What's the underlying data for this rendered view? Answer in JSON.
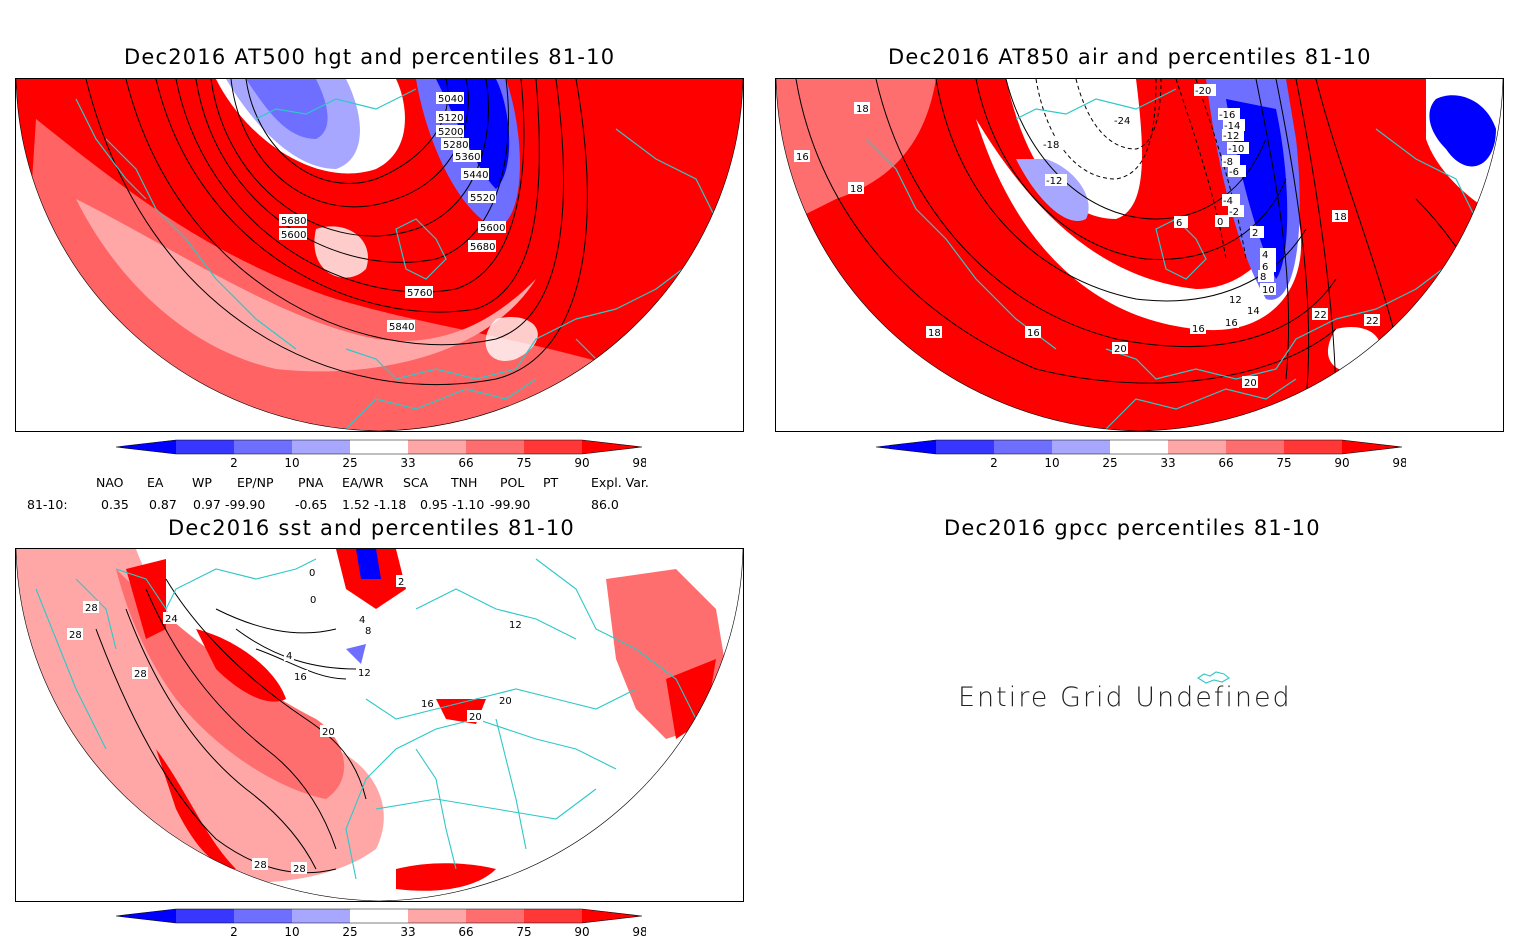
{
  "panels": {
    "hgt500": {
      "title": "Dec2016 AT500 hgt and percentiles 81-10",
      "contour_labels": [
        "5040",
        "5120",
        "5200",
        "5280",
        "5360",
        "5440",
        "5520",
        "5600",
        "5680",
        "5680",
        "5600",
        "5760",
        "5840"
      ]
    },
    "air850": {
      "title": "Dec2016 AT850 air and percentiles 81-10",
      "contour_labels": [
        "18",
        "16",
        "18",
        "18",
        "16",
        "16",
        "18",
        "20",
        "22",
        "22",
        "20",
        "16",
        "14",
        "12",
        "10",
        "8",
        "6",
        "4",
        "-4",
        "-6",
        "-8",
        "-10",
        "-12",
        "-14",
        "-16",
        "-20",
        "-24",
        "-18",
        "-12",
        "6",
        "2",
        "0",
        "-2"
      ]
    },
    "sst": {
      "title": "Dec2016 sst and percentiles 81-10",
      "contour_labels": [
        "28",
        "24",
        "28",
        "28",
        "4",
        "16",
        "12",
        "20",
        "28",
        "28",
        "8",
        "4",
        "0",
        "0",
        "2",
        "12",
        "16",
        "20",
        "20"
      ]
    },
    "gpcc": {
      "title": "Dec2016 gpcc percentiles 81-10",
      "message": "Entire Grid Undefined"
    }
  },
  "colorbar": {
    "labels": [
      "2",
      "10",
      "25",
      "33",
      "66",
      "75",
      "90",
      "98"
    ],
    "colors": [
      "#0000ff",
      "#3737ff",
      "#6e6eff",
      "#a7a7ff",
      "#ffffff",
      "#ffa7a7",
      "#ff6e6e",
      "#ff3737",
      "#ff0000"
    ]
  },
  "indices": {
    "header": [
      "NAO",
      "EA",
      "WP",
      "EP/NP",
      "PNA",
      "EA/WR",
      "SCA",
      "TNH",
      "POL",
      "PT",
      "Expl. Var."
    ],
    "row_label": "81-10:",
    "values": [
      "0.35",
      "0.87",
      "0.97",
      "-99.90",
      "-0.65",
      "1.52",
      "-1.18",
      "0.95",
      "-1.10",
      "-99.90",
      "86.0"
    ]
  },
  "colors": {
    "coast": "#2ec8c8",
    "contour": "#000000",
    "red_strong": "#ff0000",
    "red_mid": "#ff6e6e",
    "red_light": "#ffa7a7",
    "blue_strong": "#0000ff",
    "blue_mid": "#6e6eff"
  }
}
